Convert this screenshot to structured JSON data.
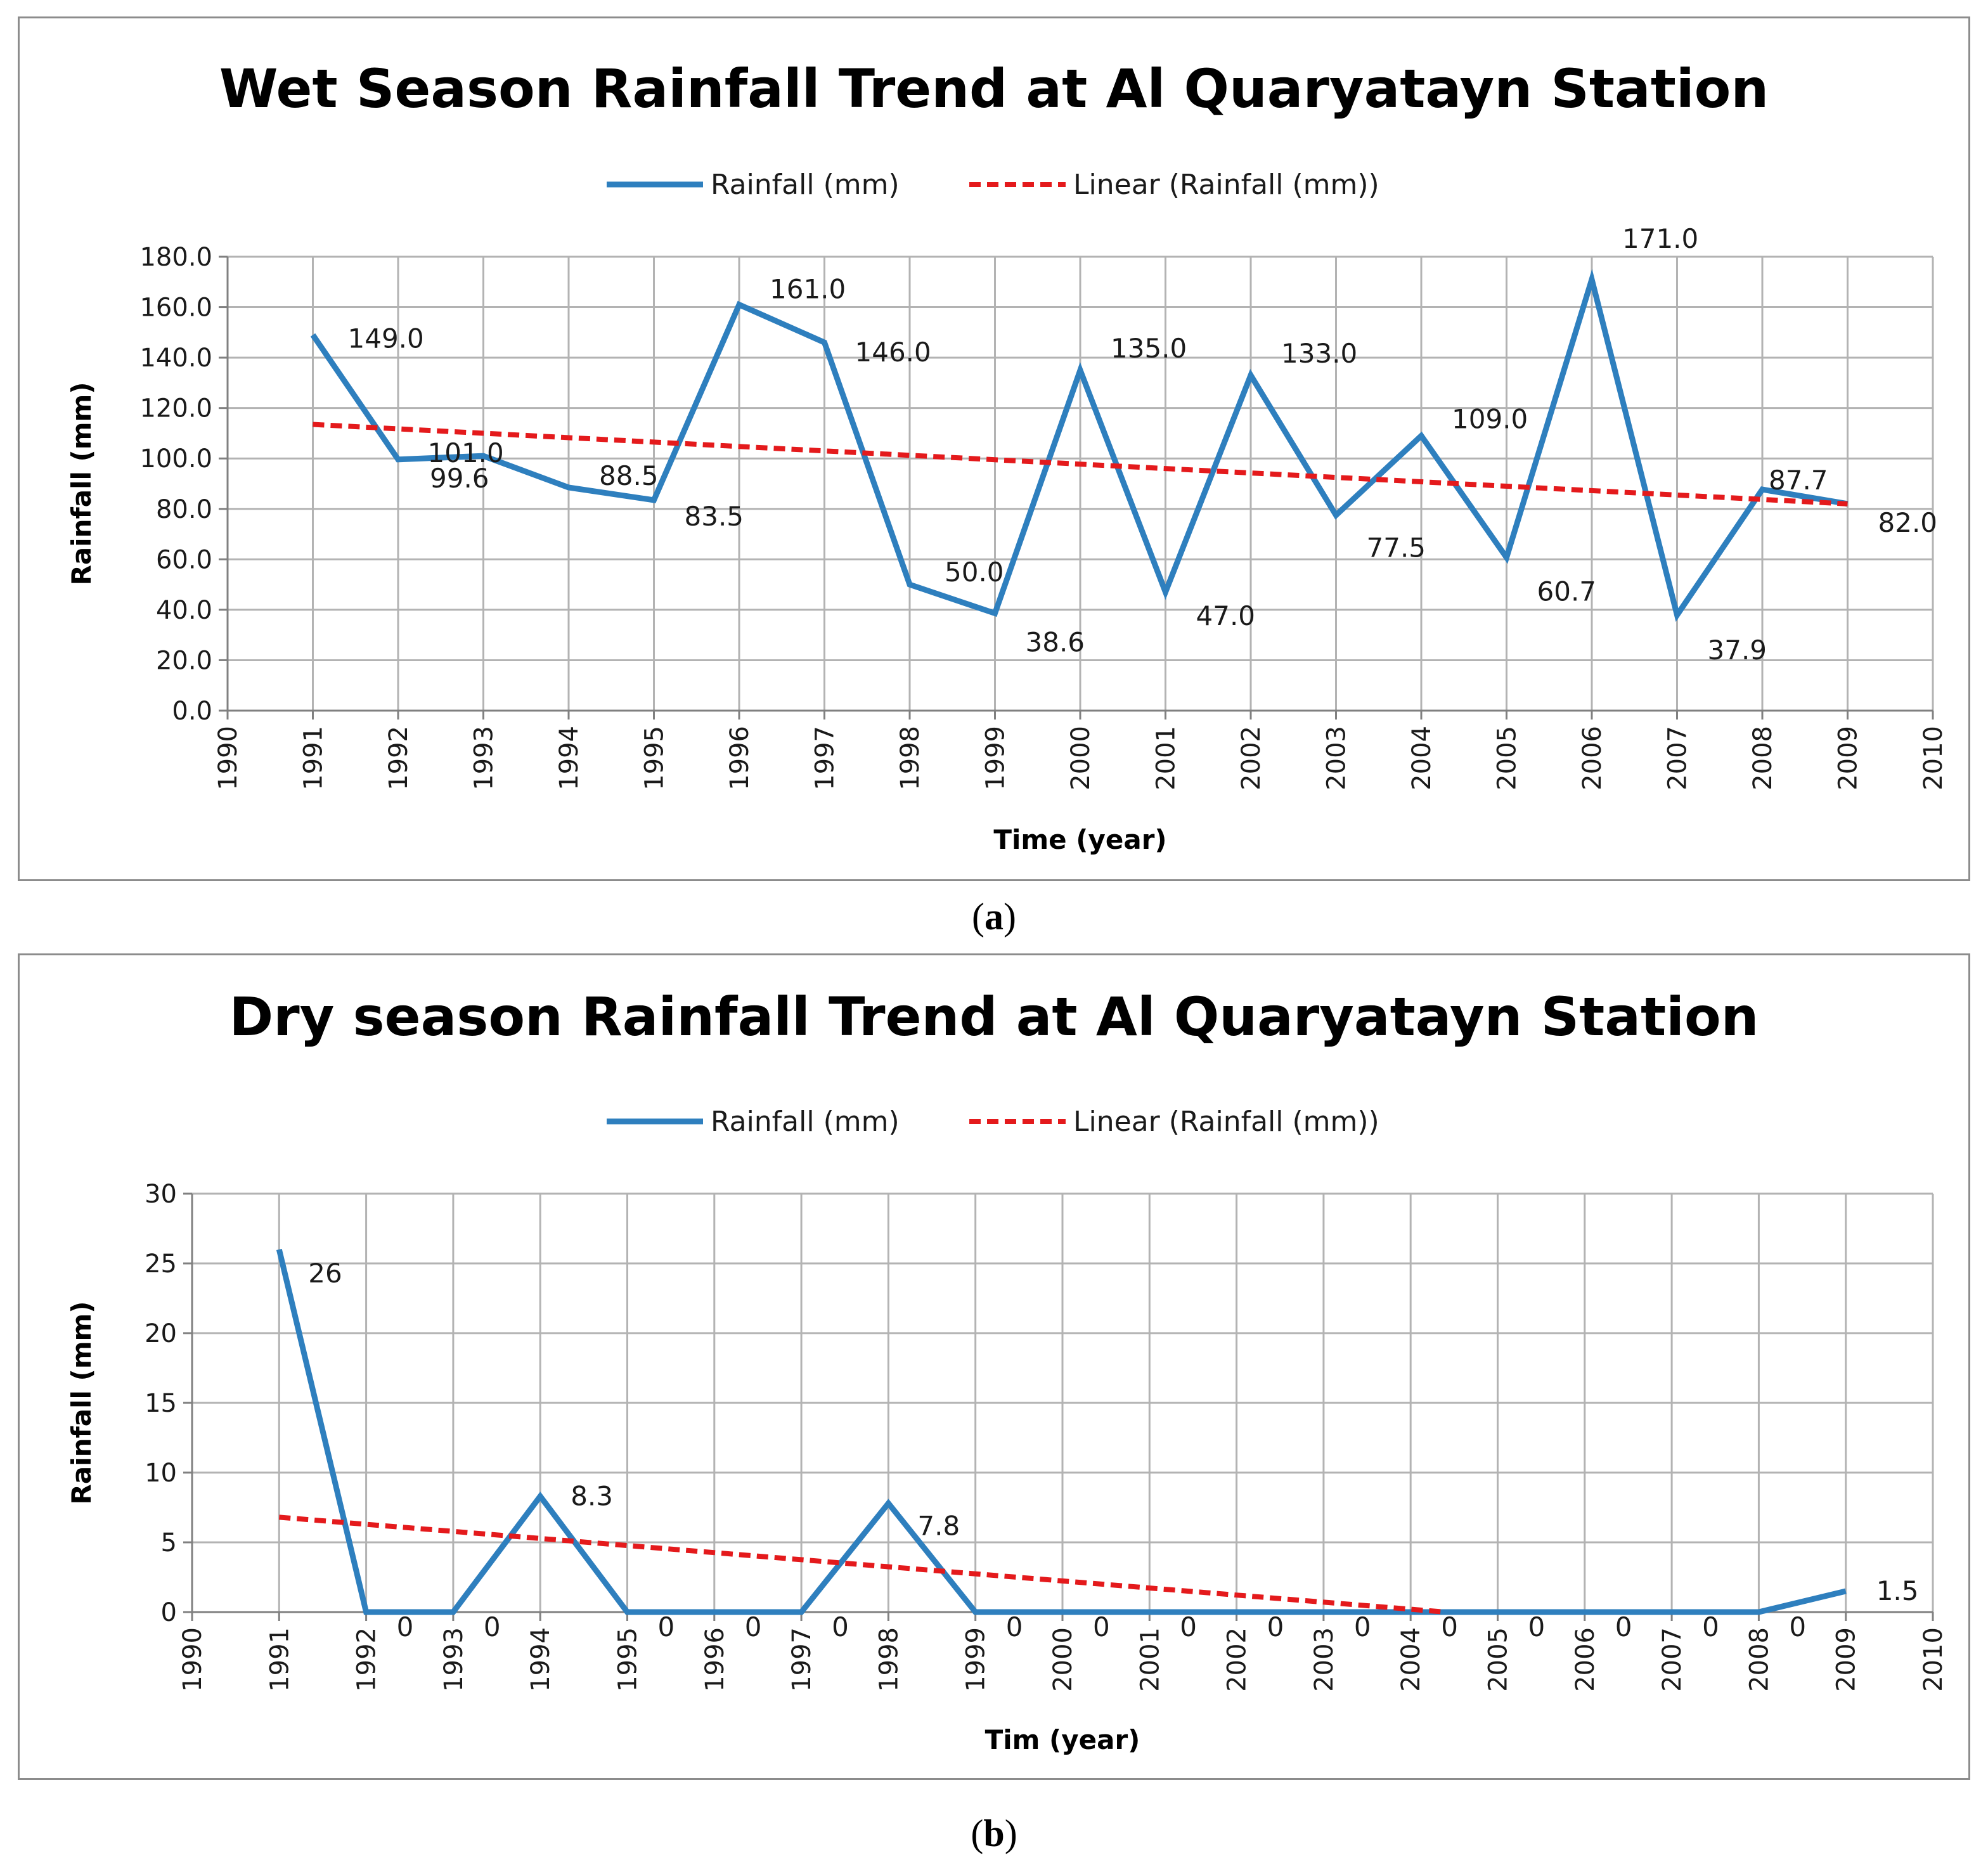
{
  "captions": {
    "a": "a",
    "b": "b"
  },
  "colors": {
    "series": "#2e7fbe",
    "trend": "#e41a1c",
    "grid": "#b3b3b3",
    "axis": "#808080"
  },
  "chart_data": [
    {
      "type": "line",
      "title": "Wet Season Rainfall Trend at Al Quaryatayn Station",
      "xlabel": "Time (year)",
      "ylabel": "Rainfall (mm)",
      "xlim": [
        1990,
        2010
      ],
      "ylim": [
        0,
        180
      ],
      "y_ticks": [
        "0.0",
        "20.0",
        "40.0",
        "60.0",
        "80.0",
        "100.0",
        "120.0",
        "140.0",
        "160.0",
        "180.0"
      ],
      "x_ticks": [
        "1990",
        "1991",
        "1992",
        "1993",
        "1994",
        "1995",
        "1996",
        "1997",
        "1998",
        "1999",
        "2000",
        "2001",
        "2002",
        "2003",
        "2004",
        "2005",
        "2006",
        "2007",
        "2008",
        "2009",
        "2010"
      ],
      "legend": [
        "Rainfall (mm)",
        "Linear (Rainfall (mm))"
      ],
      "legend_position": "top",
      "grid": true,
      "series": [
        {
          "name": "Rainfall (mm)",
          "x": [
            1991,
            1992,
            1993,
            1994,
            1995,
            1996,
            1997,
            1998,
            1999,
            2000,
            2001,
            2002,
            2003,
            2004,
            2005,
            2006,
            2007,
            2008,
            2009
          ],
          "values": [
            149.0,
            99.6,
            101.0,
            88.5,
            83.5,
            161.0,
            146.0,
            50.0,
            38.6,
            135.0,
            47.0,
            133.0,
            77.5,
            109.0,
            60.7,
            171.0,
            37.9,
            87.7,
            82.0
          ],
          "labels": [
            "149.0",
            "99.6",
            "101.0",
            "88.5",
            "83.5",
            "161.0",
            "146.0",
            "50.0",
            "38.6",
            "135.0",
            "47.0",
            "133.0",
            "77.5",
            "109.0",
            "60.7",
            "171.0",
            "37.9",
            "87.7",
            "82.0"
          ]
        }
      ],
      "trendline": {
        "name": "Linear (Rainfall (mm))",
        "x": [
          1991,
          2009
        ],
        "values": [
          113.5,
          82.0
        ]
      }
    },
    {
      "type": "line",
      "title": "Dry season Rainfall Trend at Al Quaryatayn Station",
      "xlabel": "Tim (year)",
      "ylabel": "Rainfall (mm)",
      "xlim": [
        1990,
        2010
      ],
      "ylim": [
        0,
        30
      ],
      "y_ticks": [
        "0",
        "5",
        "10",
        "15",
        "20",
        "25",
        "30"
      ],
      "x_ticks": [
        "1990",
        "1991",
        "1992",
        "1993",
        "1994",
        "1995",
        "1996",
        "1997",
        "1998",
        "1999",
        "2000",
        "2001",
        "2002",
        "2003",
        "2004",
        "2005",
        "2006",
        "2007",
        "2008",
        "2009",
        "2010"
      ],
      "legend": [
        "Rainfall (mm)",
        "Linear (Rainfall (mm))"
      ],
      "legend_position": "top",
      "grid": true,
      "series": [
        {
          "name": "Rainfall (mm)",
          "x": [
            1991,
            1992,
            1993,
            1994,
            1995,
            1996,
            1997,
            1998,
            1999,
            2000,
            2001,
            2002,
            2003,
            2004,
            2005,
            2006,
            2007,
            2008,
            2009
          ],
          "values": [
            26,
            0,
            0,
            8.3,
            0,
            0,
            0,
            7.8,
            0,
            0,
            0,
            0,
            0,
            0,
            0,
            0,
            0,
            0,
            1.5
          ],
          "labels": [
            "26",
            "0",
            "0",
            "8.3",
            "0",
            "0",
            "0",
            "7.8",
            "0",
            "0",
            "0",
            "0",
            "0",
            "0",
            "0",
            "0",
            "0",
            "0",
            "1.5"
          ]
        }
      ],
      "trendline": {
        "name": "Linear (Rainfall (mm))",
        "x": [
          1991,
          2004.4
        ],
        "values": [
          6.8,
          0
        ]
      }
    }
  ]
}
